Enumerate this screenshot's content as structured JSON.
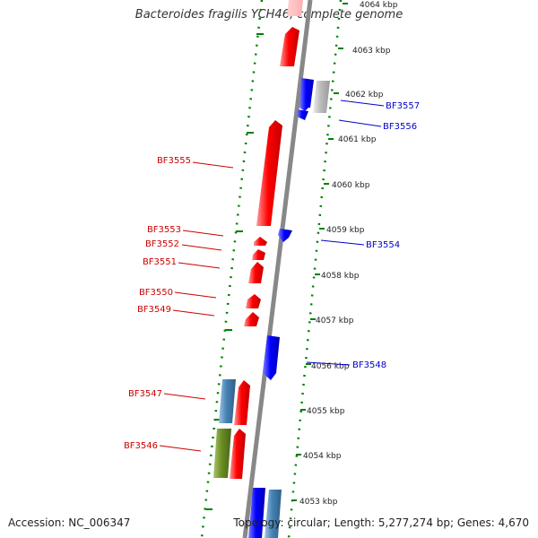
{
  "title": "Bacteroides fragilis YCH46, complete genome",
  "accession": "Accession: NC_006347",
  "summary": "Topology: circular; Length: 5,277,274 bp; Genes: 4,670",
  "colors": {
    "forward": "#ff0000",
    "reverse": "#0000ff",
    "rna": "#4682b4",
    "other": "#bbbbbb",
    "olive": "#6b8e23",
    "tick": "#008000",
    "backbone": "#888888"
  },
  "scale_ticks": [
    {
      "text": "4064 kbp",
      "value": 4064
    },
    {
      "text": "4063 kbp",
      "value": 4063
    },
    {
      "text": "4062 kbp",
      "value": 4062
    },
    {
      "text": "4061 kbp",
      "value": 4061
    },
    {
      "text": "4060 kbp",
      "value": 4060
    },
    {
      "text": "4059 kbp",
      "value": 4059
    },
    {
      "text": "4058 kbp",
      "value": 4058
    },
    {
      "text": "4057 kbp",
      "value": 4057
    },
    {
      "text": "4056 kbp",
      "value": 4056
    },
    {
      "text": "4055 kbp",
      "value": 4055
    },
    {
      "text": "4054 kbp",
      "value": 4054
    },
    {
      "text": "4053 kbp",
      "value": 4053
    }
  ],
  "gene_labels": [
    {
      "text": "BF3557",
      "strand": "reverse"
    },
    {
      "text": "BF3556",
      "strand": "reverse"
    },
    {
      "text": "BF3555",
      "strand": "forward"
    },
    {
      "text": "BF3554",
      "strand": "reverse"
    },
    {
      "text": "BF3553",
      "strand": "forward"
    },
    {
      "text": "BF3552",
      "strand": "forward"
    },
    {
      "text": "BF3551",
      "strand": "forward"
    },
    {
      "text": "BF3550",
      "strand": "forward"
    },
    {
      "text": "BF3549",
      "strand": "forward"
    },
    {
      "text": "BF3548",
      "strand": "reverse"
    },
    {
      "text": "BF3547",
      "strand": "forward"
    },
    {
      "text": "BF3546",
      "strand": "forward"
    }
  ]
}
